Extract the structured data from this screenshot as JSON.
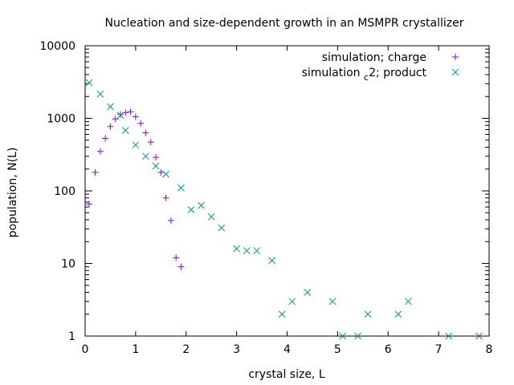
{
  "chart_data": {
    "type": "scatter",
    "title": "Nucleation and size-dependent growth in an MSMPR crystallizer",
    "xlabel": "crystal size, L",
    "ylabel": "population, N(L)",
    "xlim": [
      0,
      8
    ],
    "ylim": [
      1,
      10000
    ],
    "yscale": "log",
    "xticks": [
      0,
      1,
      2,
      3,
      4,
      5,
      6,
      7,
      8
    ],
    "yticks": [
      1,
      10,
      100,
      1000,
      10000
    ],
    "grid": false,
    "legend_position": "top-right",
    "series": [
      {
        "name": "simulation; charge",
        "marker": "plus",
        "color": "#9400d3",
        "points": [
          [
            0.08,
            66
          ],
          [
            0.2,
            180
          ],
          [
            0.3,
            350
          ],
          [
            0.4,
            530
          ],
          [
            0.5,
            770
          ],
          [
            0.6,
            980
          ],
          [
            0.7,
            1130
          ],
          [
            0.8,
            1200
          ],
          [
            0.9,
            1230
          ],
          [
            1.0,
            1050
          ],
          [
            1.1,
            850
          ],
          [
            1.2,
            630
          ],
          [
            1.3,
            470
          ],
          [
            1.4,
            290
          ],
          [
            1.5,
            180
          ],
          [
            1.6,
            80
          ],
          [
            1.7,
            39
          ],
          [
            1.8,
            12
          ],
          [
            1.9,
            9
          ]
        ]
      },
      {
        "name": "simulation c2; product",
        "name_main": "simulation",
        "name_sub": "c",
        "name_rest": "2; product",
        "marker": "cross",
        "color": "#009e73",
        "points": [
          [
            0.08,
            3100
          ],
          [
            0.3,
            2150
          ],
          [
            0.5,
            1450
          ],
          [
            0.7,
            1100
          ],
          [
            0.8,
            680
          ],
          [
            1.0,
            430
          ],
          [
            1.2,
            300
          ],
          [
            1.4,
            220
          ],
          [
            1.6,
            170
          ],
          [
            1.9,
            110
          ],
          [
            2.1,
            55
          ],
          [
            2.3,
            63
          ],
          [
            2.5,
            44
          ],
          [
            2.7,
            31
          ],
          [
            3.0,
            16
          ],
          [
            3.2,
            15
          ],
          [
            3.4,
            15
          ],
          [
            3.7,
            11
          ],
          [
            3.9,
            2
          ],
          [
            4.1,
            3
          ],
          [
            4.4,
            4
          ],
          [
            4.9,
            3
          ],
          [
            5.1,
            1
          ],
          [
            5.4,
            1
          ],
          [
            5.6,
            2
          ],
          [
            6.2,
            2
          ],
          [
            6.4,
            3
          ],
          [
            7.2,
            1
          ],
          [
            7.8,
            1
          ]
        ]
      }
    ]
  }
}
